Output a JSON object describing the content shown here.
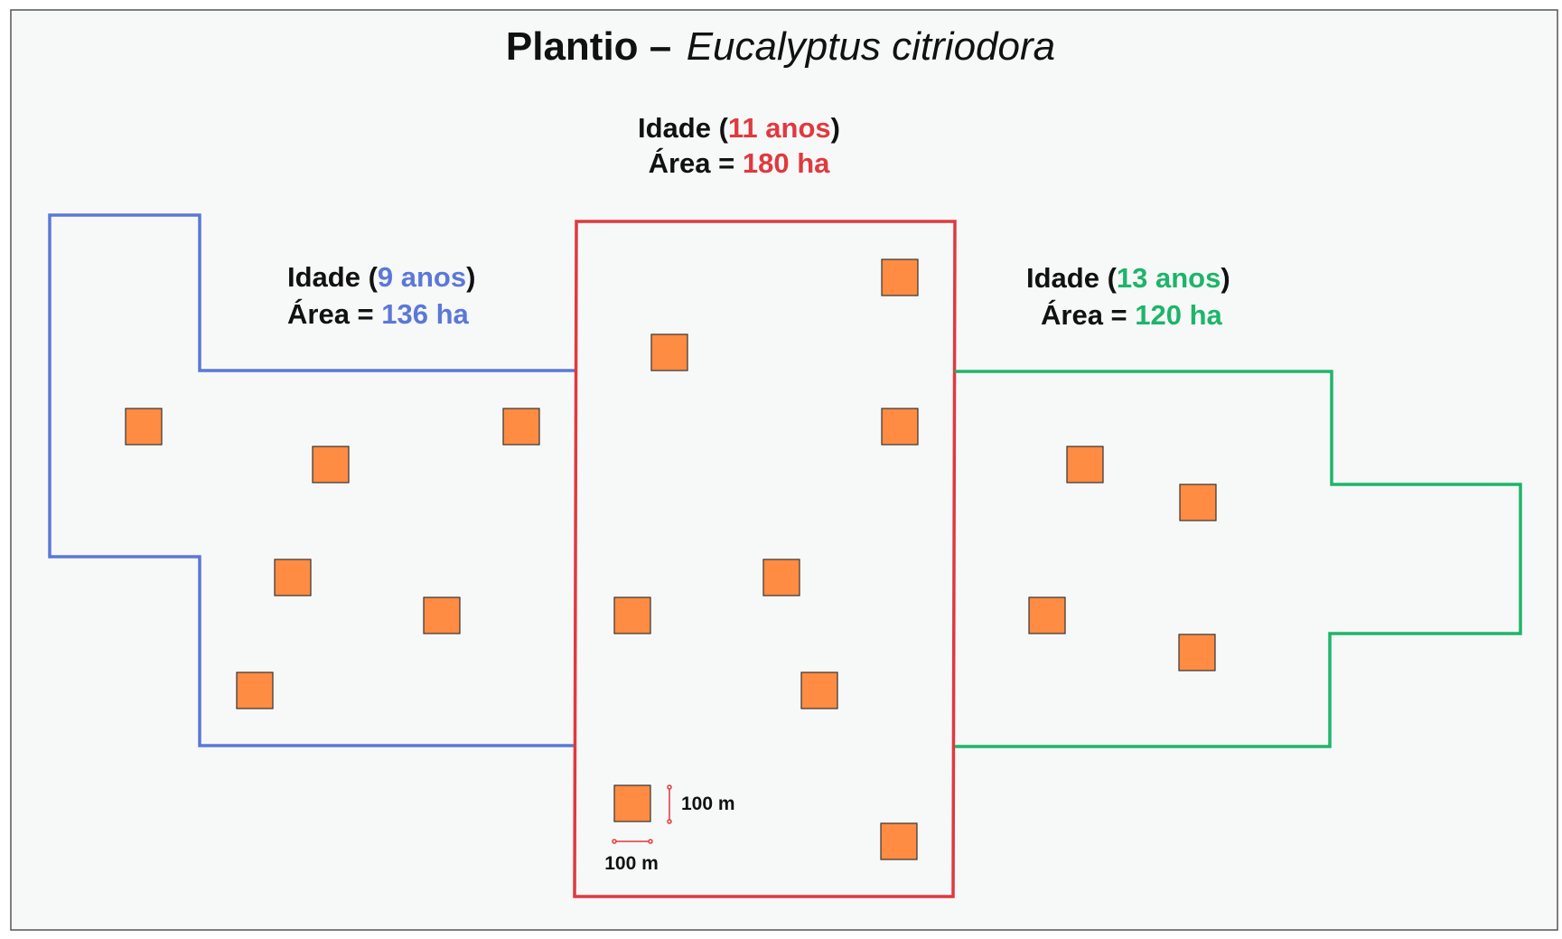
{
  "title": {
    "bold": "Plantio –",
    "italic": "Eucalyptus citriodora"
  },
  "colors": {
    "frame_border": "#555555",
    "background": "#f7f8f8",
    "plot_fill": "#ff8c42",
    "plot_stroke": "#333333",
    "blue": "#5b78d8",
    "red": "#e0393e",
    "green": "#1db56a",
    "text": "#111111"
  },
  "stands": {
    "left": {
      "color_name": "blue",
      "age_prefix": "Idade (",
      "age_value": "9 anos",
      "age_suffix": ")",
      "area_prefix": "Área = ",
      "area_value": "136 ha"
    },
    "center": {
      "color_name": "red",
      "age_prefix": "Idade (",
      "age_value": "11 anos",
      "age_suffix": ")",
      "area_prefix": "Área = ",
      "area_value": "180 ha"
    },
    "right": {
      "color_name": "green",
      "age_prefix": "Idade (",
      "age_value": "13 anos",
      "age_suffix": ")",
      "area_prefix": "Área = ",
      "area_value": "120 ha"
    }
  },
  "scale": {
    "vertical_label": "100 m",
    "horizontal_label": "100 m"
  }
}
